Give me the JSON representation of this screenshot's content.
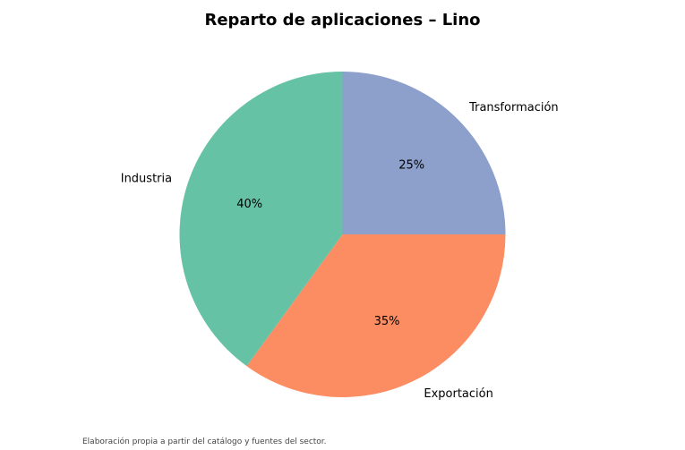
{
  "chart_data": {
    "type": "pie",
    "title": "Reparto de aplicaciones – Lino",
    "slices": [
      {
        "label": "Transformación",
        "value": 25,
        "pct_label": "25%",
        "color": "#8da0cb"
      },
      {
        "label": "Exportación",
        "value": 35,
        "pct_label": "35%",
        "color": "#fc8d62"
      },
      {
        "label": "Industria",
        "value": 40,
        "pct_label": "40%",
        "color": "#66c2a5"
      }
    ],
    "start_angle_deg": 90,
    "direction": "clockwise",
    "legend": "none"
  },
  "footer": {
    "source": "Elaboración propia a partir del catálogo y fuentes del sector."
  }
}
